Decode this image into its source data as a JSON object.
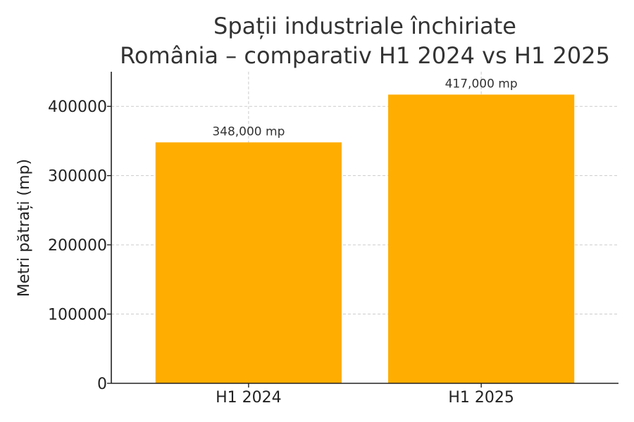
{
  "chart_data": {
    "type": "bar",
    "title_lines": [
      "Spații industriale închiriate",
      "România – comparativ H1 2024 vs H1 2025"
    ],
    "xlabel": "",
    "ylabel": "Metri pătrați (mp)",
    "categories": [
      "H1 2024",
      "H1 2025"
    ],
    "values": [
      348000,
      417000
    ],
    "data_labels": [
      "348,000 mp",
      "417,000 mp"
    ],
    "yticks": [
      0,
      100000,
      200000,
      300000,
      400000
    ],
    "ytick_labels": [
      "0",
      "100000",
      "200000",
      "300000",
      "400000"
    ],
    "ylim": [
      0,
      450000
    ],
    "grid": true,
    "bar_color": "#FFAD00",
    "grid_color": "#cccccc",
    "axis_color": "#222222"
  }
}
